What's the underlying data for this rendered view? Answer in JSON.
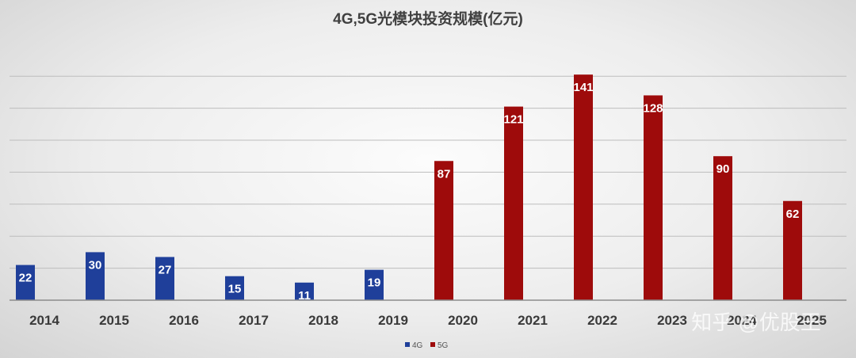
{
  "chart_data": {
    "type": "bar",
    "title": "4G,5G光模块投资规模(亿元)",
    "categories": [
      "2014",
      "2015",
      "2016",
      "2017",
      "2018",
      "2019",
      "2020",
      "2021",
      "2022",
      "2023",
      "2024",
      "2025"
    ],
    "series": [
      {
        "name": "4G",
        "color": "#1f3f9a",
        "values": [
          22,
          30,
          27,
          15,
          11,
          19,
          null,
          null,
          null,
          null,
          null,
          null
        ]
      },
      {
        "name": "5G",
        "color": "#9e0b0b",
        "values": [
          null,
          null,
          null,
          null,
          null,
          null,
          87,
          121,
          141,
          128,
          90,
          62
        ]
      }
    ],
    "ylim": [
      0,
      160
    ],
    "ygrid_step": 20,
    "grid": true,
    "legend": "bottom-center",
    "xlabel": "",
    "ylabel": ""
  },
  "watermark": "知乎 @优股王"
}
